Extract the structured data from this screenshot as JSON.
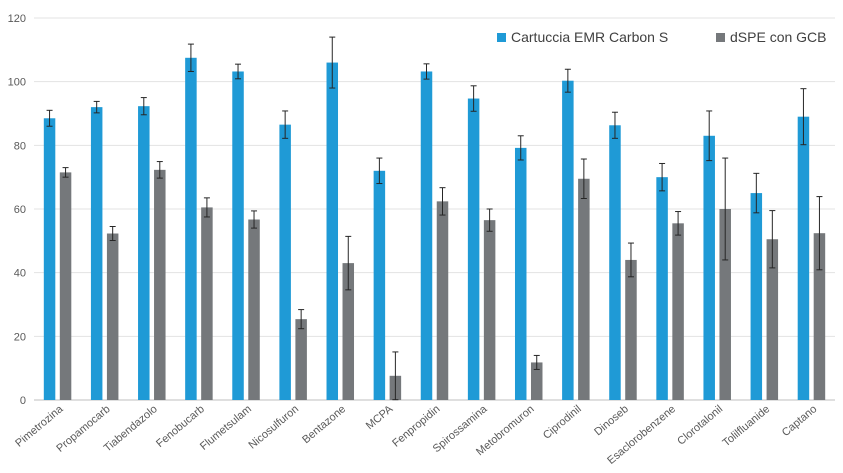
{
  "chart_data": {
    "type": "bar",
    "title": "",
    "xlabel": "",
    "ylabel": "",
    "ylim": [
      0,
      120
    ],
    "yticks": [
      "0",
      "20",
      "40",
      "60",
      "80",
      "100",
      "120"
    ],
    "grid": true,
    "legend_position": "top-right",
    "categories": [
      "Pimetrozina",
      "Propamocarb",
      "Tiabendazolo",
      "Fenobucarb",
      "Flumetsulam",
      "Nicosulfuron",
      "Bentazone",
      "MCPA",
      "Fenpropidin",
      "Spirossamina",
      "Metobromuron",
      "Ciprodinil",
      "Dinoseb",
      "Esaclorobenzene",
      "Clorotalonil",
      "Tolilfluanide",
      "Captano"
    ],
    "series": [
      {
        "name": "Cartuccia EMR Carbon S",
        "color": "#1f9ad6",
        "values": [
          88.5,
          92,
          92.3,
          107.5,
          103.2,
          86.5,
          106,
          72,
          103.2,
          94.7,
          79.2,
          100.3,
          86.3,
          70,
          83,
          65,
          89
        ],
        "errors": [
          2.5,
          1.8,
          2.7,
          4.3,
          2.3,
          4.3,
          8,
          4,
          2.4,
          4,
          3.8,
          3.6,
          4.1,
          4.3,
          7.8,
          6.2,
          8.8
        ]
      },
      {
        "name": "dSPE con GCB",
        "color": "#75787b",
        "values": [
          71.5,
          52.3,
          72.3,
          60.5,
          56.7,
          25.4,
          43,
          7.6,
          62.4,
          56.5,
          11.8,
          69.5,
          44,
          55.5,
          60,
          50.5,
          52.4
        ],
        "errors": [
          1.5,
          2.2,
          2.6,
          3,
          2.7,
          3,
          8.4,
          7.5,
          4.3,
          3.5,
          2.2,
          6.2,
          5.3,
          3.7,
          16,
          9,
          11.5
        ]
      }
    ]
  }
}
